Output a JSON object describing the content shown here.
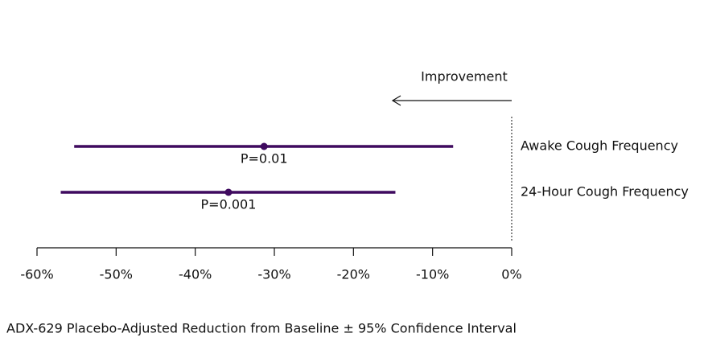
{
  "chart_data": {
    "type": "forest",
    "annotation": "Improvement",
    "xlabel": "ADX-629 Placebo-Adjusted Reduction from Baseline ± 95% Confidence Interval",
    "categories": [
      "Awake Cough Frequency",
      "24-Hour Cough Frequency"
    ],
    "values": [
      -31.3,
      -35.8
    ],
    "lower": [
      -55.3,
      -57.0
    ],
    "upper": [
      -7.4,
      -14.7
    ],
    "p_labels": [
      "P=0.01",
      "P=0.001"
    ],
    "color": "#3f0a5f",
    "xlim": [
      -60,
      0
    ],
    "xticks": [
      {
        "value": -60,
        "label": "-60%"
      },
      {
        "value": -50,
        "label": "-50%"
      },
      {
        "value": -40,
        "label": "-40%"
      },
      {
        "value": -30,
        "label": "-30%"
      },
      {
        "value": -20,
        "label": "-20%"
      },
      {
        "value": -10,
        "label": "-10%"
      },
      {
        "value": 0,
        "label": "0%"
      }
    ]
  }
}
